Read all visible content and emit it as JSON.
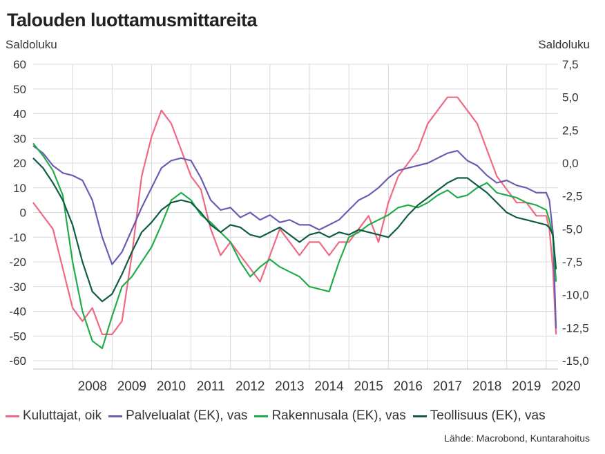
{
  "title": "Talouden luottamusmittareita",
  "left_axis_label": "Saldoluku",
  "right_axis_label": "Saldoluku",
  "source": "Lähde: Macrobond, Kuntarahoitus",
  "chart_data": {
    "type": "line",
    "title": "Talouden luottamusmittareita",
    "ylabel_left": "Saldoluku",
    "ylabel_right": "Saldoluku",
    "ylim_left": [
      -65,
      65
    ],
    "ylim_right": [
      -15.5,
      8.5
    ],
    "left_ticks": [
      "60",
      "50",
      "40",
      "30",
      "20",
      "10",
      "0",
      "-10",
      "-20",
      "-30",
      "-40",
      "-50",
      "-60"
    ],
    "right_ticks": [
      "7,5",
      "5,0",
      "2,5",
      "0,0",
      "-2,5",
      "-5,0",
      "-7,5",
      "-10,0",
      "-12,5",
      "-15,0"
    ],
    "years": [
      "2008",
      "2009",
      "2010",
      "2011",
      "2012",
      "2013",
      "2014",
      "2015",
      "2016",
      "2017",
      "2018",
      "2019",
      "2020"
    ],
    "grid": true,
    "legend_position": "bottom",
    "series": [
      {
        "name": "Kuluttajat, oik",
        "axis": "right",
        "color": "#f06882",
        "x": [
          2007.0,
          2007.25,
          2007.5,
          2007.75,
          2008.0,
          2008.25,
          2008.5,
          2008.75,
          2009.0,
          2009.25,
          2009.5,
          2009.75,
          2010.0,
          2010.25,
          2010.5,
          2010.75,
          2011.0,
          2011.25,
          2011.5,
          2011.75,
          2012.0,
          2012.25,
          2012.5,
          2012.75,
          2013.0,
          2013.25,
          2013.5,
          2013.75,
          2014.0,
          2014.25,
          2014.5,
          2014.75,
          2015.0,
          2015.25,
          2015.5,
          2015.75,
          2016.0,
          2016.25,
          2016.5,
          2016.75,
          2017.0,
          2017.25,
          2017.5,
          2017.75,
          2018.0,
          2018.25,
          2018.5,
          2018.75,
          2019.0,
          2019.25,
          2019.5,
          2019.75,
          2020.0,
          2020.08,
          2020.17,
          2020.25
        ],
        "y": [
          -3,
          -4,
          -5,
          -8,
          -11,
          -12,
          -11,
          -13,
          -13,
          -12,
          -7,
          -1,
          2,
          4,
          3,
          1,
          -1,
          -2,
          -5,
          -7,
          -6,
          -7,
          -8,
          -9,
          -7,
          -5,
          -6,
          -7,
          -6,
          -6,
          -7,
          -6,
          -6,
          -5,
          -4,
          -6,
          -3,
          -1,
          0,
          1,
          3,
          4,
          5,
          5,
          4,
          3,
          1,
          -1,
          -2,
          -3,
          -3,
          -4,
          -4,
          -5,
          -8,
          -13
        ]
      },
      {
        "name": "Palvelualat (EK), vas",
        "axis": "left",
        "color": "#6b5bb3",
        "x": [
          2007.0,
          2007.25,
          2007.5,
          2007.75,
          2008.0,
          2008.25,
          2008.5,
          2008.75,
          2009.0,
          2009.25,
          2009.5,
          2009.75,
          2010.0,
          2010.25,
          2010.5,
          2010.75,
          2011.0,
          2011.25,
          2011.5,
          2011.75,
          2012.0,
          2012.25,
          2012.5,
          2012.75,
          2013.0,
          2013.25,
          2013.5,
          2013.75,
          2014.0,
          2014.25,
          2014.5,
          2014.75,
          2015.0,
          2015.25,
          2015.5,
          2015.75,
          2016.0,
          2016.25,
          2016.5,
          2016.75,
          2017.0,
          2017.25,
          2017.5,
          2017.75,
          2018.0,
          2018.25,
          2018.5,
          2018.75,
          2019.0,
          2019.25,
          2019.5,
          2019.75,
          2020.0,
          2020.08,
          2020.17,
          2020.25
        ],
        "y": [
          27,
          24,
          19,
          16,
          15,
          13,
          5,
          -10,
          -21,
          -16,
          -7,
          2,
          10,
          18,
          21,
          22,
          21,
          14,
          5,
          1,
          2,
          -2,
          0,
          -3,
          -1,
          -4,
          -3,
          -5,
          -5,
          -7,
          -5,
          -3,
          1,
          5,
          7,
          10,
          14,
          17,
          18,
          19,
          20,
          22,
          24,
          25,
          21,
          19,
          15,
          12,
          13,
          11,
          10,
          8,
          8,
          5,
          -8,
          -47
        ]
      },
      {
        "name": "Rakennusala (EK), vas",
        "axis": "left",
        "color": "#22ab4a",
        "x": [
          2007.0,
          2007.25,
          2007.5,
          2007.75,
          2008.0,
          2008.25,
          2008.5,
          2008.75,
          2009.0,
          2009.25,
          2009.5,
          2009.75,
          2010.0,
          2010.25,
          2010.5,
          2010.75,
          2011.0,
          2011.25,
          2011.5,
          2011.75,
          2012.0,
          2012.25,
          2012.5,
          2012.75,
          2013.0,
          2013.25,
          2013.5,
          2013.75,
          2014.0,
          2014.25,
          2014.5,
          2014.75,
          2015.0,
          2015.25,
          2015.5,
          2015.75,
          2016.0,
          2016.25,
          2016.5,
          2016.75,
          2017.0,
          2017.25,
          2017.5,
          2017.75,
          2018.0,
          2018.25,
          2018.5,
          2018.75,
          2019.0,
          2019.25,
          2019.5,
          2019.75,
          2020.0,
          2020.08,
          2020.17,
          2020.25
        ],
        "y": [
          28,
          23,
          17,
          7,
          -20,
          -40,
          -52,
          -55,
          -42,
          -30,
          -26,
          -20,
          -14,
          -5,
          5,
          8,
          5,
          -1,
          -4,
          -8,
          -12,
          -20,
          -26,
          -22,
          -19,
          -22,
          -24,
          -26,
          -30,
          -31,
          -32,
          -20,
          -10,
          -8,
          -5,
          -3,
          -1,
          2,
          3,
          2,
          4,
          7,
          9,
          6,
          7,
          10,
          12,
          8,
          7,
          6,
          4,
          3,
          1,
          -3,
          -10,
          -28
        ]
      },
      {
        "name": "Teollisuus (EK), vas",
        "axis": "left",
        "color": "#0d5c43",
        "x": [
          2007.0,
          2007.25,
          2007.5,
          2007.75,
          2008.0,
          2008.25,
          2008.5,
          2008.75,
          2009.0,
          2009.25,
          2009.5,
          2009.75,
          2010.0,
          2010.25,
          2010.5,
          2010.75,
          2011.0,
          2011.25,
          2011.5,
          2011.75,
          2012.0,
          2012.25,
          2012.5,
          2012.75,
          2013.0,
          2013.25,
          2013.5,
          2013.75,
          2014.0,
          2014.25,
          2014.5,
          2014.75,
          2015.0,
          2015.25,
          2015.5,
          2015.75,
          2016.0,
          2016.25,
          2016.5,
          2016.75,
          2017.0,
          2017.25,
          2017.5,
          2017.75,
          2018.0,
          2018.25,
          2018.5,
          2018.75,
          2019.0,
          2019.25,
          2019.5,
          2019.75,
          2020.0,
          2020.08,
          2020.17,
          2020.25
        ],
        "y": [
          22,
          18,
          12,
          5,
          -5,
          -20,
          -32,
          -36,
          -33,
          -25,
          -16,
          -8,
          -4,
          1,
          4,
          5,
          4,
          0,
          -5,
          -8,
          -5,
          -6,
          -9,
          -10,
          -8,
          -6,
          -9,
          -12,
          -9,
          -8,
          -10,
          -8,
          -9,
          -7,
          -8,
          -9,
          -10,
          -6,
          -1,
          3,
          6,
          9,
          12,
          14,
          14,
          11,
          8,
          4,
          0,
          -2,
          -3,
          -4,
          -5,
          -6,
          -9,
          -23
        ]
      }
    ]
  }
}
